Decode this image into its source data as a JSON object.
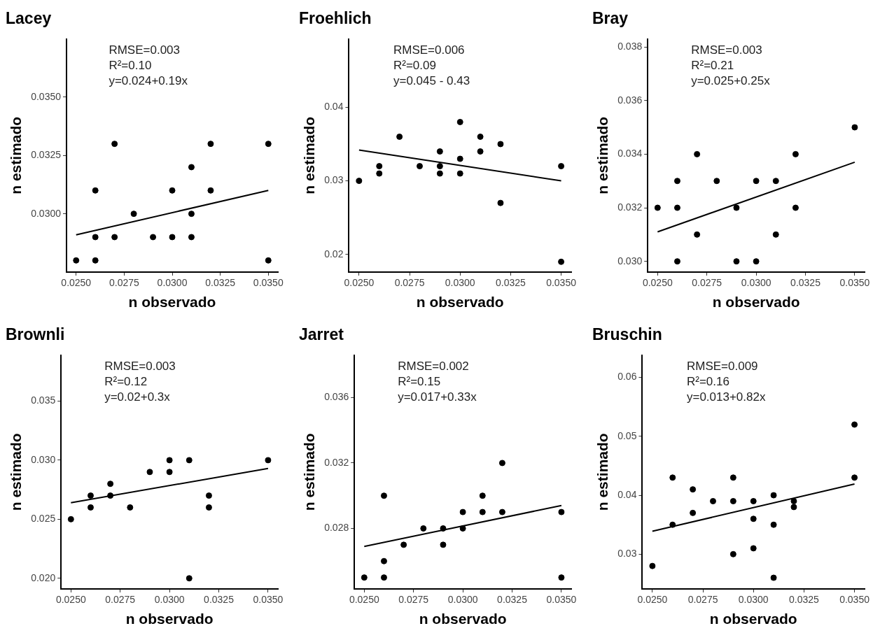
{
  "chart_data": [
    {
      "type": "scatter",
      "title": "Lacey",
      "xlabel": "n observado",
      "ylabel": "n estimado",
      "grid": false,
      "legend": false,
      "xlim": [
        0.0245,
        0.0355
      ],
      "xticks": [
        {
          "value": 0.025,
          "label": "0.0250"
        },
        {
          "value": 0.0275,
          "label": "0.0275"
        },
        {
          "value": 0.03,
          "label": "0.0300"
        },
        {
          "value": 0.0325,
          "label": "0.0325"
        },
        {
          "value": 0.035,
          "label": "0.0350"
        }
      ],
      "ylim": [
        0.0275,
        0.0375
      ],
      "yticks": [
        {
          "value": 0.03,
          "label": "0.0300"
        },
        {
          "value": 0.0325,
          "label": "0.0325"
        },
        {
          "value": 0.035,
          "label": "0.0350"
        }
      ],
      "annotations": [
        "RMSE=0.003",
        "R²=0.10",
        "y=0.024+0.19x"
      ],
      "series": [
        {
          "marker": "circle",
          "color": "#000000",
          "x": [
            0.025,
            0.026,
            0.026,
            0.026,
            0.027,
            0.027,
            0.028,
            0.029,
            0.03,
            0.03,
            0.031,
            0.031,
            0.031,
            0.032,
            0.032,
            0.035,
            0.035
          ],
          "values": [
            0.028,
            0.028,
            0.029,
            0.031,
            0.033,
            0.029,
            0.03,
            0.029,
            0.029,
            0.031,
            0.032,
            0.03,
            0.029,
            0.033,
            0.031,
            0.033,
            0.028
          ]
        },
        {
          "type": "line",
          "marker": "none",
          "color": "#000000",
          "x": [
            0.025,
            0.035
          ],
          "values": [
            0.0291,
            0.031
          ]
        }
      ]
    },
    {
      "type": "scatter",
      "title": "Froehlich",
      "xlabel": "n observado",
      "ylabel": "n estimado",
      "grid": false,
      "legend": false,
      "xlim": [
        0.0245,
        0.0355
      ],
      "xticks": [
        {
          "value": 0.025,
          "label": "0.0250"
        },
        {
          "value": 0.0275,
          "label": "0.0275"
        },
        {
          "value": 0.03,
          "label": "0.0300"
        },
        {
          "value": 0.0325,
          "label": "0.0325"
        },
        {
          "value": 0.035,
          "label": "0.0350"
        }
      ],
      "ylim": [
        0.0176,
        0.0493
      ],
      "yticks": [
        0.02,
        0.03,
        0.04
      ],
      "annotations": [
        "RMSE=0.006",
        "R²=0.09",
        "y=0.045 - 0.43"
      ],
      "series": [
        {
          "marker": "circle",
          "color": "#000000",
          "x": [
            0.025,
            0.026,
            0.026,
            0.027,
            0.028,
            0.029,
            0.029,
            0.029,
            0.03,
            0.03,
            0.03,
            0.031,
            0.031,
            0.032,
            0.032,
            0.035,
            0.035
          ],
          "values": [
            0.03,
            0.032,
            0.031,
            0.036,
            0.032,
            0.034,
            0.032,
            0.031,
            0.038,
            0.033,
            0.031,
            0.036,
            0.034,
            0.035,
            0.027,
            0.032,
            0.019
          ]
        },
        {
          "type": "line",
          "marker": "none",
          "color": "#000000",
          "x": [
            0.025,
            0.035
          ],
          "values": [
            0.0342,
            0.03
          ]
        }
      ]
    },
    {
      "type": "scatter",
      "title": "Bray",
      "xlabel": "n observado",
      "ylabel": "n estimado",
      "grid": false,
      "legend": false,
      "xlim": [
        0.0245,
        0.0355
      ],
      "xticks": [
        {
          "value": 0.025,
          "label": "0.0250"
        },
        {
          "value": 0.0275,
          "label": "0.0275"
        },
        {
          "value": 0.03,
          "label": "0.0300"
        },
        {
          "value": 0.0325,
          "label": "0.0325"
        },
        {
          "value": 0.035,
          "label": "0.0350"
        }
      ],
      "ylim": [
        0.0296,
        0.0383
      ],
      "yticks": [
        {
          "value": 0.03,
          "label": "0.030"
        },
        {
          "value": 0.032,
          "label": "0.032"
        },
        {
          "value": 0.034,
          "label": "0.034"
        },
        {
          "value": 0.036,
          "label": "0.036"
        },
        {
          "value": 0.038,
          "label": "0.038"
        }
      ],
      "annotations": [
        "RMSE=0.003",
        "R²=0.21",
        "y=0.025+0.25x"
      ],
      "series": [
        {
          "marker": "circle",
          "color": "#000000",
          "x": [
            0.025,
            0.026,
            0.026,
            0.026,
            0.027,
            0.027,
            0.028,
            0.029,
            0.029,
            0.03,
            0.03,
            0.031,
            0.031,
            0.032,
            0.032,
            0.035
          ],
          "values": [
            0.032,
            0.033,
            0.032,
            0.03,
            0.034,
            0.031,
            0.033,
            0.032,
            0.03,
            0.033,
            0.03,
            0.033,
            0.031,
            0.034,
            0.032,
            0.035
          ]
        },
        {
          "type": "line",
          "marker": "none",
          "color": "#000000",
          "x": [
            0.025,
            0.035
          ],
          "values": [
            0.0311,
            0.0337
          ]
        }
      ]
    },
    {
      "type": "scatter",
      "title": "Brownli",
      "xlabel": "n observado",
      "ylabel": "n estimado",
      "grid": false,
      "legend": false,
      "xlim": [
        0.0245,
        0.0355
      ],
      "xticks": [
        {
          "value": 0.025,
          "label": "0.0250"
        },
        {
          "value": 0.0275,
          "label": "0.0275"
        },
        {
          "value": 0.03,
          "label": "0.0300"
        },
        {
          "value": 0.0325,
          "label": "0.0325"
        },
        {
          "value": 0.035,
          "label": "0.0350"
        }
      ],
      "ylim": [
        0.0191,
        0.0389
      ],
      "yticks": [
        {
          "value": 0.02,
          "label": "0.020"
        },
        {
          "value": 0.025,
          "label": "0.025"
        },
        {
          "value": 0.03,
          "label": "0.030"
        },
        {
          "value": 0.035,
          "label": "0.035"
        }
      ],
      "annotations": [
        "RMSE=0.003",
        "R²=0.12",
        "y=0.02+0.3x"
      ],
      "series": [
        {
          "marker": "circle",
          "color": "#000000",
          "x": [
            0.025,
            0.026,
            0.026,
            0.027,
            0.027,
            0.028,
            0.029,
            0.03,
            0.03,
            0.031,
            0.031,
            0.032,
            0.032,
            0.035
          ],
          "values": [
            0.025,
            0.027,
            0.026,
            0.028,
            0.027,
            0.026,
            0.029,
            0.03,
            0.029,
            0.03,
            0.02,
            0.027,
            0.026,
            0.03
          ]
        },
        {
          "type": "line",
          "marker": "none",
          "color": "#000000",
          "x": [
            0.025,
            0.035
          ],
          "values": [
            0.0264,
            0.0293
          ]
        }
      ]
    },
    {
      "type": "scatter",
      "title": "Jarret",
      "xlabel": "n observado",
      "ylabel": "n estimado",
      "grid": false,
      "legend": false,
      "xlim": [
        0.0245,
        0.0355
      ],
      "xticks": [
        {
          "value": 0.025,
          "label": "0.0250"
        },
        {
          "value": 0.0275,
          "label": "0.0275"
        },
        {
          "value": 0.03,
          "label": "0.0300"
        },
        {
          "value": 0.0325,
          "label": "0.0325"
        },
        {
          "value": 0.035,
          "label": "0.0350"
        }
      ],
      "ylim": [
        0.0243,
        0.0386
      ],
      "yticks": [
        {
          "value": 0.028,
          "label": "0.028"
        },
        {
          "value": 0.032,
          "label": "0.032"
        },
        {
          "value": 0.036,
          "label": "0.036"
        }
      ],
      "annotations": [
        "RMSE=0.002",
        "R²=0.15",
        "y=0.017+0.33x"
      ],
      "series": [
        {
          "marker": "circle",
          "color": "#000000",
          "x": [
            0.025,
            0.026,
            0.026,
            0.026,
            0.027,
            0.028,
            0.029,
            0.029,
            0.03,
            0.03,
            0.031,
            0.031,
            0.032,
            0.032,
            0.035,
            0.035
          ],
          "values": [
            0.025,
            0.03,
            0.026,
            0.025,
            0.027,
            0.028,
            0.028,
            0.027,
            0.029,
            0.028,
            0.03,
            0.029,
            0.032,
            0.029,
            0.029,
            0.025
          ]
        },
        {
          "type": "line",
          "marker": "none",
          "color": "#000000",
          "x": [
            0.025,
            0.035
          ],
          "values": [
            0.0269,
            0.0294
          ]
        }
      ]
    },
    {
      "type": "scatter",
      "title": "Bruschin",
      "xlabel": "n observado",
      "ylabel": "n estimado",
      "grid": false,
      "legend": false,
      "xlim": [
        0.0245,
        0.0355
      ],
      "xticks": [
        {
          "value": 0.025,
          "label": "0.0250"
        },
        {
          "value": 0.0275,
          "label": "0.0275"
        },
        {
          "value": 0.03,
          "label": "0.0300"
        },
        {
          "value": 0.0325,
          "label": "0.0325"
        },
        {
          "value": 0.035,
          "label": "0.0350"
        }
      ],
      "ylim": [
        0.0241,
        0.0638
      ],
      "yticks": [
        0.03,
        0.04,
        0.05,
        0.06
      ],
      "annotations": [
        "RMSE=0.009",
        "R²=0.16",
        "y=0.013+0.82x"
      ],
      "series": [
        {
          "marker": "circle",
          "color": "#000000",
          "x": [
            0.025,
            0.026,
            0.026,
            0.027,
            0.027,
            0.028,
            0.029,
            0.029,
            0.029,
            0.03,
            0.03,
            0.03,
            0.031,
            0.031,
            0.031,
            0.032,
            0.032,
            0.035,
            0.035
          ],
          "values": [
            0.028,
            0.043,
            0.035,
            0.041,
            0.037,
            0.039,
            0.043,
            0.039,
            0.03,
            0.039,
            0.036,
            0.031,
            0.04,
            0.035,
            0.026,
            0.039,
            0.038,
            0.052,
            0.043
          ]
        },
        {
          "type": "line",
          "marker": "none",
          "color": "#000000",
          "x": [
            0.025,
            0.035
          ],
          "values": [
            0.0339,
            0.0419
          ]
        }
      ]
    }
  ]
}
